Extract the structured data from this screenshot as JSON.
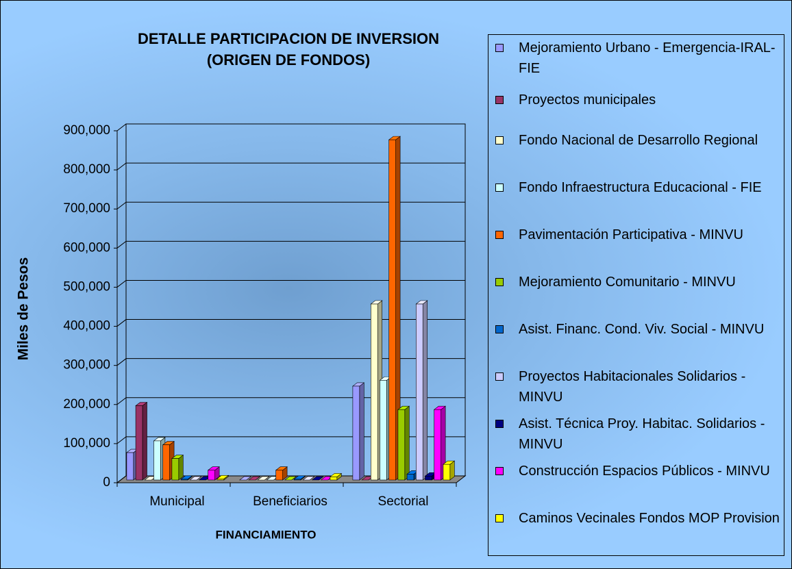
{
  "chart_data": {
    "type": "bar3d",
    "title": "DETALLE PARTICIPACION DE INVERSION",
    "subtitle": "(ORIGEN DE FONDOS)",
    "x_label": "FINANCIAMIENTO",
    "y_label": "Miles de Pesos",
    "categories": [
      "Municipal",
      "Beneficiarios",
      "Sectorial"
    ],
    "ylim": [
      0,
      900000
    ],
    "yticks": [
      0,
      {
        "value": 100000,
        "label": "100,000"
      },
      {
        "value": 200000,
        "label": "200,000"
      },
      {
        "value": 300000,
        "label": "300,000"
      },
      {
        "value": 400000,
        "label": "400,000"
      },
      {
        "value": 500000,
        "label": "500,000"
      },
      {
        "value": 600000,
        "label": "600,000"
      },
      {
        "value": 700000,
        "label": "700,000"
      },
      {
        "value": 800000,
        "label": "800,000"
      },
      {
        "value": 900000,
        "label": "900,000"
      }
    ],
    "grid": true,
    "legend": "right",
    "series": [
      {
        "name": "Mejoramiento Urbano - Emergencia-IRAL-FIE",
        "color": "#9999ff",
        "values": [
          70000,
          0,
          240000
        ]
      },
      {
        "name": "Proyectos municipales",
        "color": "#993366",
        "values": [
          190000,
          0,
          0
        ]
      },
      {
        "name": "Fondo Nacional de Desarrollo Regional",
        "color": "#ffffcc",
        "values": [
          0,
          0,
          450000
        ]
      },
      {
        "name": "Fondo Infraestructura Educacional - FIE",
        "color": "#ccffff",
        "values": [
          100000,
          0,
          255000
        ]
      },
      {
        "name": "Pavimentación Participativa - MINVU",
        "color": "#ff6600",
        "values": [
          90000,
          25000,
          870000
        ]
      },
      {
        "name": "Mejoramiento Comunitario - MINVU",
        "color": "#99cc00",
        "values": [
          55000,
          0,
          180000
        ]
      },
      {
        "name": "Asist. Financ. Cond. Viv. Social - MINVU",
        "color": "#0066cc",
        "values": [
          2000,
          2000,
          15000
        ]
      },
      {
        "name": "Proyectos Habitacionales Solidarios - MINVU",
        "color": "#ccccff",
        "values": [
          0,
          0,
          450000
        ]
      },
      {
        "name": "Asist. Técnica Proy. Habitac. Solidarios - MINVU",
        "color": "#000080",
        "values": [
          0,
          0,
          10000
        ]
      },
      {
        "name": "Construcción Espacios Públicos - MINVU",
        "color": "#ff00ff",
        "values": [
          25000,
          0,
          180000
        ]
      },
      {
        "name": "Caminos Vecinales Fondos MOP Provision",
        "color": "#ffff00",
        "values": [
          3000,
          8000,
          40000
        ]
      }
    ]
  }
}
